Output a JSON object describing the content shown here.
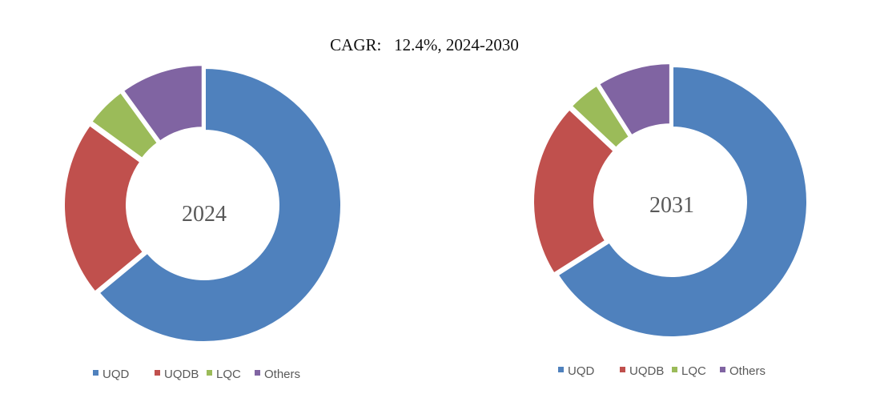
{
  "caption": {
    "prefix": "CAGR:",
    "rate": "12.4%,",
    "period": "2024-2030"
  },
  "chart_data": [
    {
      "type": "pie",
      "subtype": "donut",
      "center_label": "2024",
      "categories": [
        "UQD",
        "UQDB",
        "LQC",
        "Others"
      ],
      "values": [
        64,
        21,
        5,
        10
      ],
      "colors": [
        "#4F81BD",
        "#C0504D",
        "#9BBB59",
        "#8064A2"
      ],
      "legend_position": "bottom"
    },
    {
      "type": "pie",
      "subtype": "donut",
      "center_label": "2031",
      "categories": [
        "UQD",
        "UQDB",
        "LQC",
        "Others"
      ],
      "values": [
        66,
        21,
        4,
        9
      ],
      "colors": [
        "#4F81BD",
        "#C0504D",
        "#9BBB59",
        "#8064A2"
      ],
      "legend_position": "bottom"
    }
  ]
}
